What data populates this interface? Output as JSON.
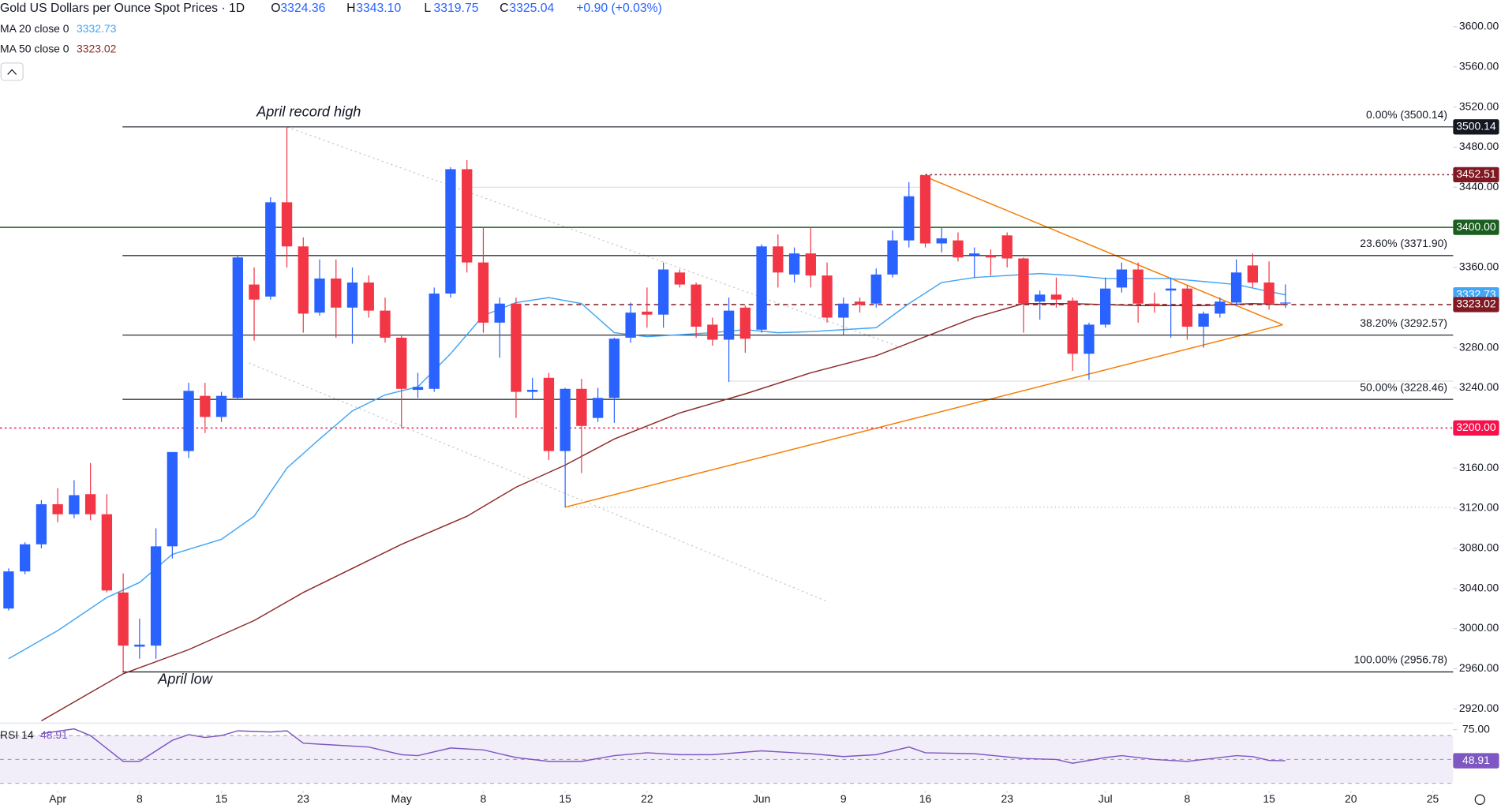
{
  "chart_data": {
    "type": "candlestick",
    "title": "Gold US Dollars per Ounce Spot Prices · 1D",
    "header": [
      {
        "label": "O",
        "value": "3324.36"
      },
      {
        "label": "H",
        "value": "3343.10"
      },
      {
        "label": "L",
        "value": "3319.75"
      },
      {
        "label": "C",
        "value": "3325.04"
      }
    ],
    "change": "+0.90 (+0.03%)",
    "up_color": "#2962ff",
    "down_color": "#f23645",
    "candles": {
      "open": [
        3020,
        3057,
        3084,
        3124,
        3114,
        3134,
        3114,
        3036,
        2982,
        2983,
        3082,
        3177,
        3232,
        3211,
        3230,
        3343,
        3331,
        3425,
        3381,
        3315,
        3349,
        3320,
        3345,
        3317,
        3290,
        3238,
        3239,
        3334,
        3458,
        3365,
        3305,
        3324,
        3236,
        3250,
        3177,
        3239,
        3210,
        3230,
        3290,
        3316,
        3313,
        3355,
        3343,
        3303,
        3288,
        3320,
        3298,
        3381,
        3353,
        3374,
        3352,
        3310,
        3326,
        3324,
        3353,
        3387,
        3452,
        3384,
        3387,
        3372,
        3372,
        3392,
        3369,
        3326,
        3333,
        3327,
        3274,
        3303,
        3340,
        3358,
        3324,
        3337,
        3339,
        3301,
        3314,
        3325,
        3362,
        3345,
        3324.36
      ],
      "high": [
        3060,
        3086,
        3128,
        3140,
        3148,
        3165,
        3134,
        3055,
        3010,
        3100,
        3176,
        3245,
        3245,
        3236,
        3372,
        3360,
        3430,
        3500,
        3390,
        3368,
        3368,
        3360,
        3352,
        3330,
        3292,
        3255,
        3340,
        3460,
        3467,
        3400,
        3330,
        3330,
        3250,
        3255,
        3240,
        3249,
        3240,
        3290,
        3325,
        3340,
        3365,
        3358,
        3345,
        3310,
        3330,
        3322,
        3383,
        3393,
        3380,
        3400,
        3365,
        3330,
        3330,
        3359,
        3397,
        3445,
        3452,
        3400,
        3395,
        3380,
        3378,
        3395,
        3370,
        3337,
        3350,
        3330,
        3305,
        3350,
        3365,
        3365,
        3335,
        3350,
        3342,
        3316,
        3330,
        3368,
        3374,
        3366,
        3343.1
      ],
      "low": [
        3018,
        3054,
        3080,
        3106,
        3110,
        3108,
        3036,
        2957,
        2970,
        2970,
        3070,
        3170,
        3195,
        3206,
        3228,
        3287,
        3328,
        3360,
        3295,
        3312,
        3290,
        3284,
        3310,
        3285,
        3200,
        3230,
        3236,
        3330,
        3355,
        3295,
        3270,
        3210,
        3228,
        3168,
        3121,
        3155,
        3206,
        3205,
        3285,
        3300,
        3300,
        3340,
        3290,
        3282,
        3246,
        3275,
        3295,
        3340,
        3345,
        3340,
        3305,
        3293,
        3315,
        3320,
        3350,
        3380,
        3380,
        3375,
        3366,
        3350,
        3352,
        3360,
        3295,
        3308,
        3320,
        3257,
        3248,
        3300,
        3335,
        3305,
        3315,
        3290,
        3288,
        3280,
        3310,
        3322,
        3340,
        3318,
        3319.75
      ],
      "close": [
        3057,
        3084,
        3124,
        3114,
        3133,
        3114,
        3038,
        2983,
        2984,
        3082,
        3176,
        3237,
        3211,
        3232,
        3370,
        3328,
        3425,
        3381,
        3314,
        3349,
        3320,
        3345,
        3317,
        3290,
        3239,
        3241,
        3334,
        3458,
        3365,
        3305,
        3324,
        3236,
        3238,
        3177,
        3239,
        3202,
        3230,
        3289,
        3315,
        3313,
        3358,
        3343,
        3301,
        3288,
        3317,
        3289,
        3381,
        3355,
        3374,
        3352,
        3310,
        3324,
        3323,
        3353,
        3387,
        3431,
        3384,
        3389,
        3370,
        3374,
        3370,
        3369,
        3324,
        3333,
        3328,
        3274,
        3303,
        3339,
        3358,
        3324,
        3322,
        3339,
        3301,
        3314,
        3326,
        3355,
        3345,
        3324,
        3325.04
      ]
    },
    "series": [
      {
        "name": "MA 20 close 0",
        "color": "#42a5f5",
        "x": [
          0,
          3,
          6,
          8,
          10,
          13,
          15,
          17,
          19,
          21,
          23,
          25,
          27,
          29,
          31,
          33,
          35,
          37,
          39,
          41,
          43,
          45,
          47,
          49,
          51,
          53,
          55,
          57,
          59,
          61,
          63,
          65,
          67,
          69,
          71,
          73,
          75,
          77,
          78
        ],
        "values": [
          2970,
          2998,
          3031,
          3046,
          3074,
          3089,
          3112,
          3160,
          3189,
          3217,
          3233,
          3241,
          3274,
          3312,
          3325,
          3330,
          3324,
          3295,
          3291,
          3293,
          3295,
          3298,
          3295,
          3296,
          3298,
          3300,
          3324,
          3345,
          3350,
          3352,
          3354,
          3352,
          3349,
          3349,
          3349,
          3346,
          3343,
          3336,
          3332.73
        ]
      },
      {
        "name": "MA 50 close 0",
        "color": "#8d2a2a",
        "x": [
          2,
          7,
          11,
          15,
          18,
          21,
          24,
          28,
          31,
          34,
          37,
          41,
          45,
          49,
          53,
          56,
          59,
          62,
          65,
          69,
          73,
          76,
          78
        ],
        "values": [
          2908,
          2955,
          2979,
          3008,
          3036,
          3060,
          3084,
          3112,
          3141,
          3163,
          3189,
          3215,
          3234,
          3255,
          3272,
          3291,
          3310,
          3324,
          3324,
          3322,
          3322,
          3324,
          3323.02
        ]
      }
    ],
    "fib_levels": [
      {
        "value": 3500.14,
        "label": "0.00% (3500.14)"
      },
      {
        "value": 3371.9,
        "label": "23.60% (3371.90)"
      },
      {
        "value": 3292.57,
        "label": "38.20% (3292.57)"
      },
      {
        "value": 3228.46,
        "label": "50.00% (3228.46)"
      },
      {
        "value": 2956.78,
        "label": "100.00% (2956.78)"
      }
    ],
    "price_lines": [
      {
        "value": 3500.14,
        "label": "3500.14",
        "color": "#131722",
        "style": "none"
      },
      {
        "value": 3452.51,
        "label": "3452.51",
        "color": "#801922",
        "style": "dotted",
        "from": 56
      },
      {
        "value": 3400,
        "label": "3400.00",
        "color": "#1b5e20",
        "style": "solid",
        "from": 0
      },
      {
        "value": 3332.73,
        "label": "3332.73",
        "color": "#42a5f5",
        "style": "none"
      },
      {
        "value": 3323.02,
        "label": "3323.02",
        "color": "#801922",
        "style": "dashed",
        "from": 31
      },
      {
        "value": 3200,
        "label": "3200.00",
        "color": "#f7104a",
        "style": "dotted",
        "from": 0
      }
    ],
    "annotations": [
      "April record high",
      "April low"
    ],
    "ylim": [
      2920,
      3600
    ],
    "yticks": [
      {
        "value": 2920,
        "label": "2920.00"
      },
      {
        "value": 2960,
        "label": "2960.00"
      },
      {
        "value": 3000,
        "label": "3000.00"
      },
      {
        "value": 3040,
        "label": "3040.00"
      },
      {
        "value": 3080,
        "label": "3080.00"
      },
      {
        "value": 3120,
        "label": "3120.00"
      },
      {
        "value": 3160,
        "label": "3160.00"
      },
      {
        "value": 3200,
        "label": "3200.00"
      },
      {
        "value": 3240,
        "label": "3240.00"
      },
      {
        "value": 3280,
        "label": "3280.00"
      },
      {
        "value": 3320,
        "label": "3320.00"
      },
      {
        "value": 3360,
        "label": "3360.00"
      },
      {
        "value": 3400,
        "label": "3400.00"
      },
      {
        "value": 3440,
        "label": "3440.00"
      },
      {
        "value": 3480,
        "label": "3480.00"
      },
      {
        "value": 3520,
        "label": "3520.00"
      },
      {
        "value": 3560,
        "label": "3560.00"
      },
      {
        "value": 3600,
        "label": "3600.00"
      }
    ],
    "xticks": [
      {
        "value": 3,
        "label": "Apr"
      },
      {
        "value": 8,
        "label": "8"
      },
      {
        "value": 13,
        "label": "15"
      },
      {
        "value": 18,
        "label": "23"
      },
      {
        "value": 24,
        "label": "May"
      },
      {
        "value": 29,
        "label": "8"
      },
      {
        "value": 34,
        "label": "15"
      },
      {
        "value": 39,
        "label": "22"
      },
      {
        "value": 46,
        "label": "Jun"
      },
      {
        "value": 51,
        "label": "9"
      },
      {
        "value": 56,
        "label": "16"
      },
      {
        "value": 61,
        "label": "23"
      },
      {
        "value": 67,
        "label": "Jul"
      },
      {
        "value": 72,
        "label": "8"
      },
      {
        "value": 77,
        "label": "15"
      },
      {
        "value": 82,
        "label": "20"
      },
      {
        "value": 87,
        "label": "25"
      }
    ],
    "rsi": {
      "name": "RSI 14",
      "color": "#7e57c2",
      "x": [
        2,
        4,
        5,
        7,
        8,
        10,
        11,
        12,
        13,
        14,
        16,
        17,
        18,
        20,
        22,
        24,
        25,
        27,
        29,
        31,
        33,
        35,
        37,
        39,
        41,
        43,
        46,
        49,
        51,
        53,
        55,
        56,
        59,
        62,
        64,
        65,
        67,
        68,
        70,
        72,
        75,
        76,
        77,
        78
      ],
      "values": [
        71.6,
        75.6,
        70,
        48.4,
        48.4,
        66,
        70.8,
        68.4,
        70,
        74,
        73,
        74,
        63.6,
        62,
        60.4,
        54,
        53.2,
        59.6,
        58,
        51.6,
        48.4,
        48.4,
        53.2,
        55.6,
        54,
        54,
        57.2,
        54.8,
        52.4,
        54,
        60.4,
        55.6,
        54.8,
        50.8,
        50,
        46.8,
        51.6,
        53.2,
        50,
        48.4,
        53.2,
        52.4,
        49.2,
        48.91
      ],
      "levels": [
        70,
        50,
        30
      ],
      "yticks": [
        {
          "value": 75,
          "label": "75.00"
        }
      ]
    }
  }
}
